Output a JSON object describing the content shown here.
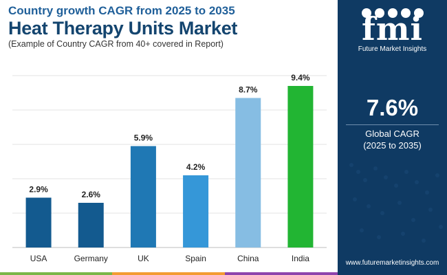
{
  "header": {
    "subtitle": "Country growth CAGR from 2025 to 2035",
    "title": "Heat Therapy Units Market",
    "note": "(Example of Country CAGR from 40+ covered in Report)"
  },
  "chart_data": {
    "type": "bar",
    "categories": [
      "USA",
      "Germany",
      "UK",
      "Spain",
      "China",
      "India"
    ],
    "values": [
      2.9,
      2.6,
      5.9,
      4.2,
      8.7,
      9.4
    ],
    "labels": [
      "2.9%",
      "2.6%",
      "5.9%",
      "4.2%",
      "8.7%",
      "9.4%"
    ],
    "colors": [
      "#135a8f",
      "#135a8f",
      "#1f78b4",
      "#3597d8",
      "#86bde3",
      "#22b533"
    ],
    "ylim": [
      0,
      10
    ],
    "grid": true,
    "title": "Heat Therapy Units Market",
    "xlabel": "",
    "ylabel": ""
  },
  "sidebar": {
    "logo_text": "fmi",
    "logo_sub": "Future Market Insights",
    "cagr_value": "7.6%",
    "cagr_label_line1": "Global CAGR",
    "cagr_label_line2": "(2025 to 2035)",
    "website": "www.futuremarketinsights.com",
    "background": "#0f3a63"
  },
  "footer": {
    "bar_colors": [
      "#7ab648",
      "#f39c32",
      "#8e44ad"
    ]
  }
}
